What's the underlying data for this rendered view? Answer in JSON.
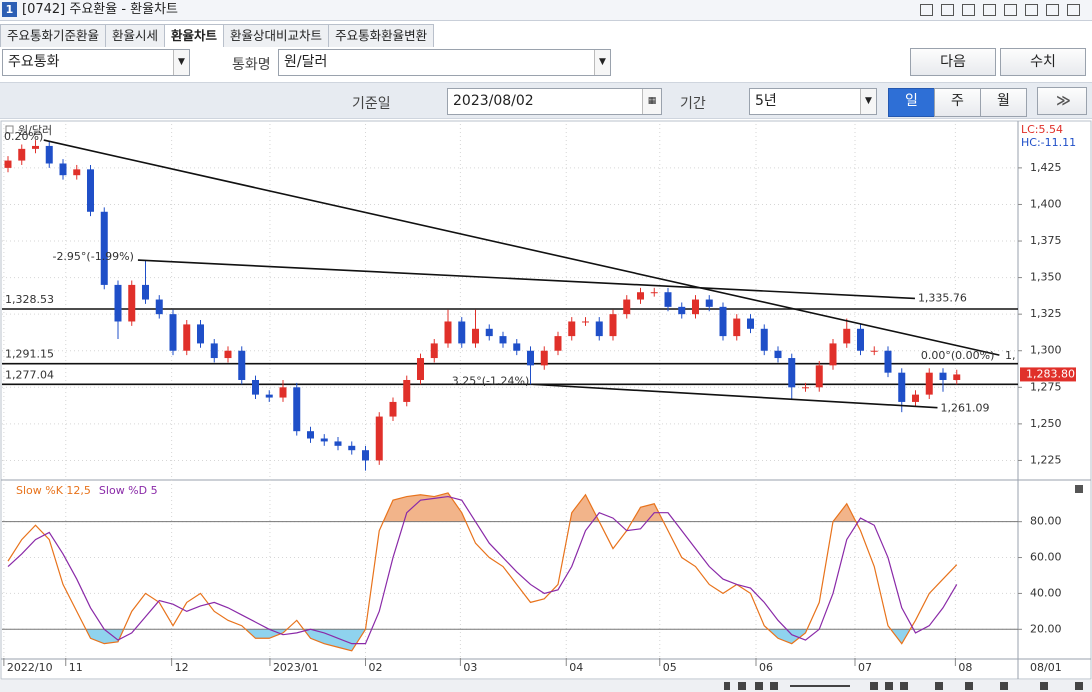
{
  "window": {
    "title": "[0742] 주요환율 - 환율차트",
    "icon": "1"
  },
  "tabs": {
    "items": [
      "주요통화기준환율",
      "환율시세",
      "환율차트",
      "환율상대비교차트",
      "주요통화환율변환"
    ],
    "active": 2
  },
  "controls": {
    "group": "주요통화",
    "currency_label": "통화명",
    "currency": "원/달러",
    "next": "다음",
    "values": "수치",
    "date_label": "기준일",
    "date": "2023/08/02",
    "period_label": "기간",
    "period": "5년",
    "units": [
      "일",
      "주",
      "월"
    ],
    "active_unit": 0
  },
  "chart_data": {
    "type": "candlestick",
    "title": "원/달러",
    "lc": "LC:5.54",
    "hc": "HC:-11.11",
    "up_color": "#e0302a",
    "down_color": "#1f4fc8",
    "open": [
      1425,
      1430,
      1438,
      1440,
      1428,
      1420,
      1424,
      1395,
      1345,
      1320,
      1345,
      1335,
      1325,
      1300,
      1318,
      1305,
      1295,
      1300,
      1280,
      1270,
      1268,
      1275,
      1245,
      1240,
      1238,
      1235,
      1232,
      1225,
      1255,
      1265,
      1280,
      1295,
      1305,
      1320,
      1305,
      1315,
      1310,
      1305,
      1300,
      1290,
      1300,
      1310,
      1320,
      1320,
      1310,
      1325,
      1335,
      1340,
      1340,
      1330,
      1325,
      1335,
      1330,
      1310,
      1322,
      1315,
      1300,
      1295,
      1275,
      1275,
      1290,
      1305,
      1315,
      1300,
      1300,
      1285,
      1265,
      1270,
      1285,
      1280
    ],
    "close": [
      1430,
      1438,
      1440,
      1428,
      1420,
      1424,
      1395,
      1345,
      1320,
      1345,
      1335,
      1325,
      1300,
      1318,
      1305,
      1295,
      1300,
      1280,
      1270,
      1268,
      1275,
      1245,
      1240,
      1238,
      1235,
      1232,
      1225,
      1255,
      1265,
      1280,
      1295,
      1305,
      1320,
      1305,
      1315,
      1310,
      1305,
      1300,
      1290,
      1300,
      1310,
      1320,
      1320,
      1310,
      1325,
      1335,
      1340,
      1340,
      1330,
      1325,
      1335,
      1330,
      1310,
      1322,
      1315,
      1300,
      1295,
      1275,
      1275,
      1290,
      1305,
      1315,
      1300,
      1300,
      1285,
      1265,
      1270,
      1285,
      1280,
      1283.8
    ],
    "high": [
      1433,
      1441,
      1444,
      1443,
      1431,
      1427,
      1427,
      1398,
      1348,
      1348,
      1362,
      1338,
      1328,
      1321,
      1321,
      1308,
      1303,
      1303,
      1283,
      1273,
      1280,
      1278,
      1248,
      1243,
      1241,
      1238,
      1235,
      1258,
      1268,
      1283,
      1298,
      1308,
      1328,
      1323,
      1328,
      1318,
      1313,
      1308,
      1303,
      1303,
      1313,
      1323,
      1323,
      1323,
      1328,
      1338,
      1343,
      1343,
      1343,
      1333,
      1338,
      1338,
      1333,
      1325,
      1325,
      1318,
      1303,
      1298,
      1278,
      1293,
      1308,
      1322,
      1318,
      1303,
      1303,
      1288,
      1273,
      1288,
      1288,
      1287
    ],
    "low": [
      1422,
      1427,
      1435,
      1425,
      1417,
      1417,
      1392,
      1342,
      1308,
      1317,
      1332,
      1322,
      1297,
      1297,
      1302,
      1292,
      1292,
      1277,
      1267,
      1265,
      1265,
      1242,
      1237,
      1235,
      1232,
      1229,
      1218,
      1222,
      1252,
      1262,
      1277,
      1292,
      1302,
      1302,
      1302,
      1307,
      1302,
      1297,
      1277,
      1287,
      1297,
      1307,
      1317,
      1307,
      1307,
      1322,
      1332,
      1337,
      1327,
      1322,
      1322,
      1327,
      1307,
      1307,
      1312,
      1297,
      1292,
      1267,
      1272,
      1272,
      1287,
      1302,
      1297,
      1297,
      1282,
      1258,
      1262,
      1267,
      1272,
      1277
    ],
    "last_label": "1,283.80",
    "ylim": [
      1213,
      1455
    ],
    "yticks": [
      {
        "value": 1225,
        "label": "1,225"
      },
      {
        "value": 1250,
        "label": "1,250"
      },
      {
        "value": 1275,
        "label": "1,275"
      },
      {
        "value": 1300,
        "label": "1,300"
      },
      {
        "value": 1325,
        "label": "1,325"
      },
      {
        "value": 1350,
        "label": "1,350"
      },
      {
        "value": 1375,
        "label": "1,375"
      },
      {
        "value": 1400,
        "label": "1,400"
      },
      {
        "value": 1425,
        "label": "1,425"
      }
    ],
    "xticks": [
      {
        "value": -0.3,
        "label": "2022/10"
      },
      {
        "value": 4.2,
        "label": "11"
      },
      {
        "value": 11.9,
        "label": "12"
      },
      {
        "value": 19.05,
        "label": "2023/01"
      },
      {
        "value": 26,
        "label": "02"
      },
      {
        "value": 32.9,
        "label": "03"
      },
      {
        "value": 40.6,
        "label": "04"
      },
      {
        "value": 47.4,
        "label": "05"
      },
      {
        "value": 54.4,
        "label": "06"
      },
      {
        "value": 61.6,
        "label": "07"
      },
      {
        "value": 68.9,
        "label": "08"
      }
    ],
    "axis_date": "08/01",
    "hlines": [
      {
        "value": 1328.53,
        "label": "1,328.53"
      },
      {
        "value": 1291.15,
        "label": "1,291.15"
      },
      {
        "value": 1277.04,
        "label": "1,277.04"
      }
    ],
    "trendlines": [
      {
        "points": [
          [
            2.6,
            1444
          ],
          [
            72.1,
            1297
          ]
        ],
        "start_label": "0.20%)",
        "end_label": "0.00°(0.00%)",
        "tail": "1,"
      },
      {
        "points": [
          [
            9.45,
            1362
          ],
          [
            65.96,
            1335.76
          ]
        ],
        "start_label": "-2.95°(-1.99%)",
        "end_label": "1,335.76"
      },
      {
        "points": [
          [
            38.2,
            1277
          ],
          [
            67.6,
            1261.09
          ]
        ],
        "start_label": "3.25°(-1.24%)",
        "end_label": "1,261.09"
      }
    ],
    "indicator": {
      "type": "line",
      "ylim": [
        4,
        101
      ],
      "yticks": [
        {
          "value": 20,
          "label": "20.00"
        },
        {
          "value": 40,
          "label": "40.00"
        },
        {
          "value": 60,
          "label": "60.00"
        },
        {
          "value": 80,
          "label": "80.00"
        }
      ],
      "levels": [
        80,
        20
      ],
      "high_fill": "#f2b48a",
      "low_fill": "#8fd3ee",
      "series": [
        {
          "name": "Slow %K 12,5",
          "color": "#e8731c",
          "values": [
            58,
            70,
            78,
            70,
            45,
            30,
            15,
            12,
            13,
            30,
            40,
            35,
            22,
            35,
            40,
            30,
            25,
            22,
            15,
            15,
            18,
            25,
            15,
            12,
            10,
            8,
            20,
            75,
            92,
            94,
            95,
            94,
            96,
            85,
            68,
            60,
            55,
            45,
            35,
            37,
            45,
            85,
            95,
            80,
            65,
            75,
            88,
            90,
            75,
            60,
            55,
            45,
            40,
            45,
            40,
            22,
            15,
            12,
            18,
            35,
            80,
            90,
            75,
            55,
            22,
            12,
            25,
            40,
            48,
            56
          ]
        },
        {
          "name": "Slow %D 5",
          "color": "#8a2aa8",
          "values": [
            55,
            62,
            70,
            74,
            62,
            48,
            32,
            20,
            14,
            18,
            27,
            36,
            34,
            30,
            33,
            35,
            32,
            28,
            24,
            20,
            17,
            18,
            20,
            18,
            15,
            12,
            12,
            30,
            60,
            85,
            92,
            93,
            94,
            92,
            80,
            68,
            60,
            52,
            45,
            40,
            42,
            55,
            75,
            85,
            82,
            75,
            76,
            85,
            85,
            75,
            65,
            55,
            48,
            45,
            43,
            35,
            25,
            17,
            14,
            20,
            40,
            70,
            82,
            78,
            60,
            32,
            18,
            22,
            32,
            45
          ]
        }
      ]
    }
  }
}
